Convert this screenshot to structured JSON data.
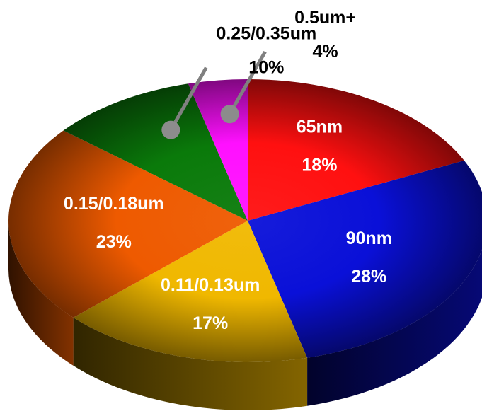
{
  "chart_data": {
    "type": "pie",
    "title": "",
    "start_angle_deg": -90,
    "categories": [
      "65nm",
      "90nm",
      "0.11/0.13um",
      "0.15/0.18um",
      "0.25/0.35um",
      "0.5um+"
    ],
    "values": [
      18,
      28,
      17,
      23,
      10,
      4
    ],
    "value_labels": [
      "18%",
      "28%",
      "17%",
      "23%",
      "10%",
      "4%"
    ],
    "colors": [
      "#ff1010",
      "#0a10d8",
      "#f0b800",
      "#ee5a00",
      "#0a7a0a",
      "#ff10ff"
    ],
    "label_placement": [
      "inside",
      "inside",
      "inside",
      "inside",
      "outside-leader",
      "outside-leader"
    ],
    "style": "3d-tilted"
  }
}
